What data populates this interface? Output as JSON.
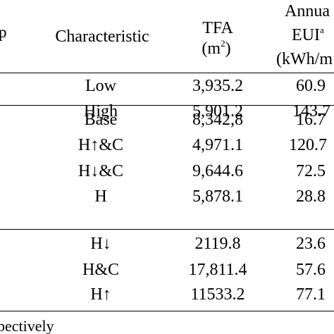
{
  "header": {
    "group_fragment": "p",
    "characteristic": "Characteristic",
    "tfa_line1": "TFA",
    "tfa_line2_base": "(m",
    "tfa_line2_sup": "2",
    "tfa_line2_end": ")",
    "eui_line1": "Annua",
    "eui_line2_base": "EUI",
    "eui_line2_sup": "a",
    "eui_line3": "(kWh/m"
  },
  "rows": [
    {
      "characteristic": "Low",
      "tfa": "3,935.2",
      "eui": "60.9"
    },
    {
      "characteristic": "High",
      "tfa": "5,901.2",
      "eui": "143.7"
    },
    {
      "characteristic": "Base",
      "tfa": "8,342,8",
      "eui": "16.7"
    },
    {
      "characteristic": "H↑&C",
      "tfa": "4,971.1",
      "eui": "120.7"
    },
    {
      "characteristic": "H↓&C",
      "tfa": "9,644.6",
      "eui": "72.5"
    },
    {
      "characteristic": "H",
      "tfa": "5,878.1",
      "eui": "28.8"
    },
    {
      "characteristic": "H↓",
      "tfa": "2119.8",
      "eui": "23.6"
    },
    {
      "characteristic": "H&C",
      "tfa": "17,811.4",
      "eui": "57.6"
    },
    {
      "characteristic": "H↑",
      "tfa": "11533.2",
      "eui": "77.1"
    }
  ],
  "footnote": "pectively"
}
